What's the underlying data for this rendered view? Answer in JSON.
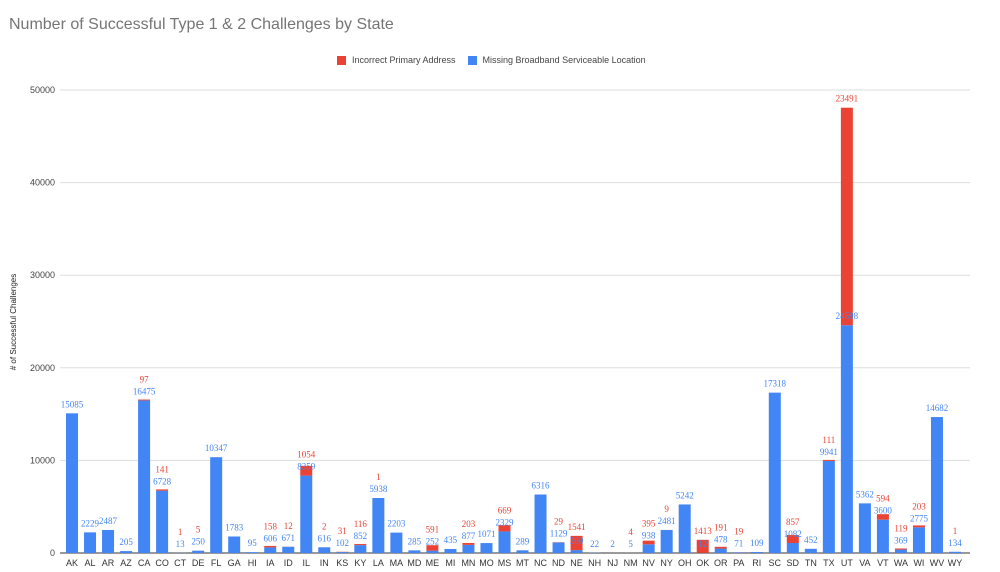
{
  "chart_data": {
    "type": "bar",
    "stacked": true,
    "title": "Number of Successful Type 1 & 2 Challenges by State",
    "xlabel": "",
    "ylabel": "# of Successful Challenges",
    "ylim": [
      0,
      50000
    ],
    "yticks": [
      0,
      10000,
      20000,
      30000,
      40000,
      50000
    ],
    "grid": true,
    "legend_position": "top",
    "categories": [
      "AK",
      "AL",
      "AR",
      "AZ",
      "CA",
      "CO",
      "CT",
      "DE",
      "FL",
      "GA",
      "HI",
      "IA",
      "ID",
      "IL",
      "IN",
      "KS",
      "KY",
      "LA",
      "MA",
      "MD",
      "ME",
      "MI",
      "MN",
      "MO",
      "MS",
      "MT",
      "NC",
      "ND",
      "NE",
      "NH",
      "NJ",
      "NM",
      "NV",
      "NY",
      "OH",
      "OK",
      "OR",
      "PA",
      "RI",
      "SC",
      "SD",
      "TN",
      "TX",
      "UT",
      "VA",
      "VT",
      "WA",
      "WI",
      "WV",
      "WY"
    ],
    "series": [
      {
        "name": "Missing Broadband Serviceable Location",
        "color": "#4285f4",
        "values": [
          15085,
          2229,
          2487,
          205,
          16475,
          6728,
          13,
          250,
          10347,
          1783,
          95,
          606,
          671,
          8359,
          616,
          102,
          852,
          5938,
          2203,
          285,
          252,
          435,
          877,
          1071,
          2329,
          289,
          6316,
          1129,
          309,
          22,
          2,
          5,
          938,
          2481,
          5242,
          12,
          478,
          71,
          109,
          17318,
          1082,
          452,
          9941,
          24598,
          5362,
          3600,
          369,
          2775,
          14682,
          134
        ]
      },
      {
        "name": "Incorrect Primary Address",
        "color": "#ea4335",
        "values": [
          null,
          null,
          null,
          null,
          97,
          141,
          1,
          5,
          null,
          null,
          null,
          158,
          12,
          1054,
          2,
          31,
          116,
          1,
          null,
          null,
          591,
          null,
          203,
          null,
          669,
          null,
          null,
          29,
          1541,
          null,
          null,
          4,
          395,
          9,
          null,
          1413,
          191,
          19,
          null,
          null,
          857,
          null,
          111,
          23491,
          null,
          594,
          119,
          203,
          null,
          1
        ]
      }
    ],
    "legend_order": [
      "Incorrect Primary Address",
      "Missing Broadband Serviceable Location"
    ]
  }
}
